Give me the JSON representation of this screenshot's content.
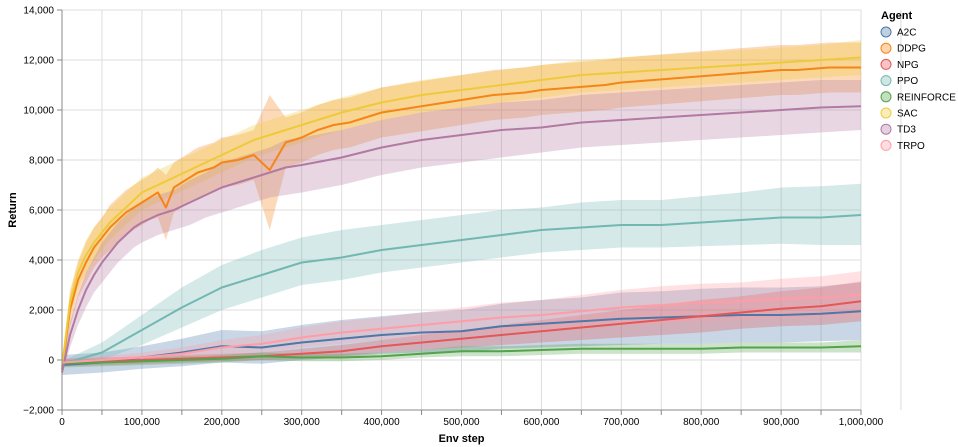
{
  "chart_data": {
    "type": "line",
    "xlabel": "Env step",
    "ylabel": "Return",
    "xlim": [
      0,
      1000000
    ],
    "ylim": [
      -2000,
      14000
    ],
    "x_ticks": [
      0,
      100000,
      200000,
      300000,
      400000,
      500000,
      600000,
      700000,
      800000,
      900000,
      1000000
    ],
    "x_tick_labels": [
      "0",
      "100,000",
      "200,000",
      "300,000",
      "400,000",
      "500,000",
      "600,000",
      "700,000",
      "800,000",
      "900,000",
      "1,000,000"
    ],
    "y_ticks": [
      -2000,
      0,
      2000,
      4000,
      6000,
      8000,
      10000,
      12000,
      14000
    ],
    "y_tick_labels": [
      "−2,000",
      "0",
      "2,000",
      "4,000",
      "6,000",
      "8,000",
      "10,000",
      "12,000",
      "14,000"
    ],
    "grid": true,
    "legend_title": "Agent",
    "legend_position": "right",
    "series": [
      {
        "name": "A2C",
        "color": "#4c78a8",
        "x": [
          0,
          50000,
          100000,
          150000,
          200000,
          250000,
          300000,
          350000,
          400000,
          450000,
          500000,
          550000,
          600000,
          650000,
          700000,
          750000,
          800000,
          850000,
          900000,
          950000,
          1000000
        ],
        "y": [
          -200,
          -100,
          100,
          300,
          550,
          500,
          700,
          850,
          1000,
          1100,
          1150,
          1350,
          1450,
          1550,
          1650,
          1700,
          1750,
          1800,
          1800,
          1850,
          1950
        ],
        "lo": [
          -600,
          -500,
          -350,
          -250,
          -100,
          -150,
          0,
          100,
          250,
          300,
          300,
          450,
          500,
          550,
          600,
          650,
          650,
          700,
          700,
          750,
          800
        ],
        "hi": [
          200,
          300,
          550,
          850,
          1200,
          1150,
          1400,
          1600,
          1750,
          1900,
          2000,
          2250,
          2400,
          2500,
          2700,
          2750,
          2850,
          2900,
          2900,
          2950,
          3100
        ]
      },
      {
        "name": "DDPG",
        "color": "#f58518",
        "x": [
          0,
          10000,
          20000,
          30000,
          40000,
          50000,
          60000,
          70000,
          80000,
          90000,
          100000,
          110000,
          120000,
          130000,
          140000,
          150000,
          160000,
          170000,
          180000,
          190000,
          200000,
          220000,
          240000,
          260000,
          280000,
          300000,
          320000,
          340000,
          360000,
          380000,
          400000,
          420000,
          440000,
          460000,
          480000,
          500000,
          520000,
          540000,
          560000,
          580000,
          600000,
          620000,
          640000,
          660000,
          680000,
          700000,
          720000,
          740000,
          760000,
          780000,
          800000,
          820000,
          840000,
          860000,
          880000,
          900000,
          920000,
          940000,
          960000,
          980000,
          1000000
        ],
        "y": [
          -400,
          2000,
          3200,
          3900,
          4500,
          4900,
          5300,
          5600,
          5900,
          6100,
          6300,
          6500,
          6700,
          6100,
          6900,
          7100,
          7300,
          7500,
          7600,
          7700,
          7900,
          8000,
          8200,
          7600,
          8700,
          8900,
          9200,
          9400,
          9500,
          9700,
          9900,
          10000,
          10100,
          10200,
          10300,
          10400,
          10500,
          10600,
          10650,
          10700,
          10800,
          10850,
          10900,
          10950,
          11000,
          11100,
          11150,
          11200,
          11250,
          11300,
          11350,
          11400,
          11450,
          11500,
          11550,
          11600,
          11600,
          11650,
          11700,
          11700,
          11700
        ],
        "lo": [
          -500,
          1300,
          2500,
          3100,
          3700,
          4100,
          4400,
          4700,
          5000,
          5200,
          5400,
          5600,
          5700,
          4800,
          5900,
          6100,
          6300,
          6500,
          6600,
          6700,
          6900,
          7000,
          7200,
          5200,
          7700,
          7900,
          8200,
          8400,
          8500,
          8700,
          8900,
          9000,
          9100,
          9200,
          9300,
          9400,
          9500,
          9600,
          9650,
          9700,
          9800,
          9850,
          9900,
          9950,
          10000,
          10100,
          10150,
          10200,
          10250,
          10300,
          10350,
          10400,
          10450,
          10500,
          10550,
          10600,
          10600,
          10650,
          10700,
          10700,
          10700
        ],
        "hi": [
          0,
          2700,
          3900,
          4700,
          5300,
          5700,
          6200,
          6500,
          6800,
          7000,
          7200,
          7400,
          7700,
          7400,
          7900,
          8100,
          8300,
          8500,
          8600,
          8700,
          8900,
          9000,
          9200,
          10600,
          9700,
          9900,
          10200,
          10400,
          10500,
          10700,
          10900,
          11000,
          11100,
          11200,
          11300,
          11400,
          11500,
          11600,
          11650,
          11700,
          11800,
          11850,
          11900,
          11950,
          12000,
          12100,
          12150,
          12200,
          12250,
          12300,
          12350,
          12400,
          12450,
          12500,
          12550,
          12600,
          12600,
          12650,
          12700,
          12700,
          12700
        ]
      },
      {
        "name": "NPG",
        "color": "#e45756",
        "x": [
          0,
          50000,
          100000,
          150000,
          200000,
          250000,
          300000,
          350000,
          400000,
          450000,
          500000,
          550000,
          600000,
          650000,
          700000,
          750000,
          800000,
          850000,
          900000,
          950000,
          1000000
        ],
        "y": [
          -100,
          -50,
          0,
          50,
          100,
          150,
          250,
          350,
          550,
          700,
          850,
          1000,
          1150,
          1300,
          1450,
          1600,
          1750,
          1900,
          2050,
          2150,
          2350
        ],
        "lo": [
          -250,
          -200,
          -150,
          -100,
          -50,
          0,
          50,
          150,
          300,
          400,
          500,
          600,
          700,
          800,
          900,
          1000,
          1100,
          1250,
          1350,
          1400,
          1550
        ],
        "hi": [
          50,
          100,
          150,
          200,
          250,
          300,
          450,
          600,
          800,
          1000,
          1200,
          1400,
          1600,
          1800,
          2000,
          2200,
          2400,
          2550,
          2750,
          2900,
          3150
        ]
      },
      {
        "name": "PPO",
        "color": "#72b7b2",
        "x": [
          0,
          50000,
          100000,
          150000,
          200000,
          250000,
          300000,
          350000,
          400000,
          450000,
          500000,
          550000,
          600000,
          650000,
          700000,
          750000,
          800000,
          850000,
          900000,
          950000,
          1000000
        ],
        "y": [
          -150,
          300,
          1200,
          2100,
          2900,
          3400,
          3900,
          4100,
          4400,
          4600,
          4800,
          5000,
          5200,
          5300,
          5400,
          5400,
          5500,
          5600,
          5700,
          5700,
          5800
        ],
        "lo": [
          -250,
          0,
          600,
          1300,
          2000,
          2500,
          3000,
          3200,
          3500,
          3700,
          3900,
          4100,
          4300,
          4400,
          4500,
          4500,
          4550,
          4600,
          4650,
          4600,
          4600
        ],
        "hi": [
          -50,
          700,
          1800,
          2900,
          3800,
          4400,
          4900,
          5200,
          5400,
          5600,
          5800,
          6000,
          6100,
          6300,
          6400,
          6400,
          6550,
          6700,
          6900,
          6950,
          7050
        ]
      },
      {
        "name": "REINFORCE",
        "color": "#54a24b",
        "x": [
          0,
          50000,
          100000,
          150000,
          200000,
          250000,
          300000,
          350000,
          400000,
          450000,
          500000,
          550000,
          600000,
          650000,
          700000,
          750000,
          800000,
          850000,
          900000,
          950000,
          1000000
        ],
        "y": [
          -150,
          -100,
          -50,
          0,
          50,
          150,
          100,
          100,
          150,
          250,
          350,
          350,
          400,
          450,
          450,
          450,
          450,
          500,
          500,
          500,
          550
        ],
        "lo": [
          -300,
          -250,
          -200,
          -150,
          -100,
          0,
          -50,
          -50,
          0,
          100,
          150,
          150,
          200,
          250,
          250,
          250,
          250,
          300,
          300,
          300,
          300
        ],
        "hi": [
          0,
          50,
          100,
          150,
          200,
          300,
          250,
          250,
          300,
          400,
          550,
          550,
          600,
          650,
          650,
          650,
          650,
          700,
          700,
          700,
          800
        ]
      },
      {
        "name": "SAC",
        "color": "#eeca3b",
        "x": [
          0,
          10000,
          20000,
          30000,
          40000,
          50000,
          60000,
          70000,
          80000,
          90000,
          100000,
          120000,
          140000,
          160000,
          180000,
          200000,
          220000,
          240000,
          260000,
          280000,
          300000,
          350000,
          400000,
          450000,
          500000,
          550000,
          600000,
          650000,
          700000,
          750000,
          800000,
          850000,
          900000,
          950000,
          1000000
        ],
        "y": [
          -300,
          2300,
          3500,
          4200,
          4700,
          5100,
          5500,
          5800,
          6100,
          6400,
          6700,
          7000,
          7300,
          7600,
          7900,
          8200,
          8500,
          8800,
          9000,
          9200,
          9400,
          9900,
          10300,
          10600,
          10800,
          11000,
          11200,
          11400,
          11500,
          11600,
          11700,
          11800,
          11900,
          12000,
          12100
        ],
        "lo": [
          -400,
          1800,
          2900,
          3500,
          4000,
          4400,
          4800,
          5100,
          5400,
          5700,
          6000,
          6300,
          6600,
          6900,
          7200,
          7500,
          7800,
          8100,
          8300,
          8500,
          8700,
          9200,
          9600,
          9900,
          10100,
          10300,
          10500,
          10700,
          10800,
          10900,
          11000,
          11100,
          11200,
          11300,
          11400
        ],
        "hi": [
          -100,
          2800,
          4000,
          4800,
          5300,
          5700,
          6100,
          6400,
          6700,
          7000,
          7300,
          7600,
          7900,
          8200,
          8500,
          8800,
          9100,
          9400,
          9600,
          9800,
          10000,
          10500,
          10900,
          11200,
          11400,
          11600,
          11800,
          12000,
          12100,
          12200,
          12300,
          12400,
          12500,
          12600,
          12800
        ]
      },
      {
        "name": "TD3",
        "color": "#b279a2",
        "x": [
          0,
          10000,
          20000,
          30000,
          40000,
          50000,
          60000,
          70000,
          80000,
          90000,
          100000,
          120000,
          140000,
          160000,
          180000,
          200000,
          220000,
          240000,
          260000,
          280000,
          300000,
          350000,
          400000,
          450000,
          500000,
          550000,
          600000,
          650000,
          700000,
          750000,
          800000,
          850000,
          900000,
          950000,
          1000000
        ],
        "y": [
          -500,
          1000,
          2000,
          2800,
          3400,
          3900,
          4300,
          4700,
          5000,
          5300,
          5500,
          5800,
          6000,
          6300,
          6600,
          6900,
          7100,
          7300,
          7500,
          7700,
          7800,
          8100,
          8500,
          8800,
          9000,
          9200,
          9300,
          9500,
          9600,
          9700,
          9800,
          9900,
          10000,
          10100,
          10150
        ],
        "lo": [
          -600,
          500,
          1400,
          2100,
          2700,
          3100,
          3500,
          3900,
          4200,
          4500,
          4700,
          5000,
          5200,
          5400,
          5700,
          5900,
          6100,
          6300,
          6500,
          6600,
          6700,
          7000,
          7400,
          7700,
          7900,
          8100,
          8300,
          8500,
          8600,
          8700,
          8800,
          8900,
          9000,
          9100,
          9200
        ],
        "hi": [
          -400,
          1500,
          2600,
          3500,
          4100,
          4700,
          5100,
          5500,
          5800,
          6100,
          6300,
          6600,
          6800,
          7200,
          7500,
          7900,
          8100,
          8300,
          8500,
          8800,
          8900,
          9200,
          9600,
          9900,
          10100,
          10300,
          10400,
          10600,
          10700,
          10800,
          10900,
          11000,
          11100,
          11200,
          11200
        ]
      },
      {
        "name": "TRPO",
        "color": "#ff9da6",
        "x": [
          0,
          50000,
          100000,
          150000,
          200000,
          250000,
          300000,
          350000,
          400000,
          450000,
          500000,
          550000,
          600000,
          650000,
          700000,
          750000,
          800000,
          850000,
          900000,
          950000,
          1000000
        ],
        "y": [
          -100,
          0,
          100,
          250,
          500,
          650,
          900,
          1100,
          1250,
          1400,
          1550,
          1700,
          1800,
          1950,
          2100,
          2200,
          2300,
          2350,
          2450,
          2500,
          2600
        ],
        "lo": [
          -250,
          -150,
          -100,
          0,
          200,
          300,
          500,
          650,
          800,
          900,
          1000,
          1100,
          1200,
          1300,
          1400,
          1450,
          1550,
          1600,
          1650,
          1700,
          1700
        ],
        "hi": [
          50,
          150,
          300,
          500,
          800,
          1000,
          1300,
          1550,
          1700,
          1900,
          2100,
          2300,
          2400,
          2600,
          2800,
          2950,
          3050,
          3100,
          3250,
          3350,
          3550
        ]
      }
    ]
  }
}
